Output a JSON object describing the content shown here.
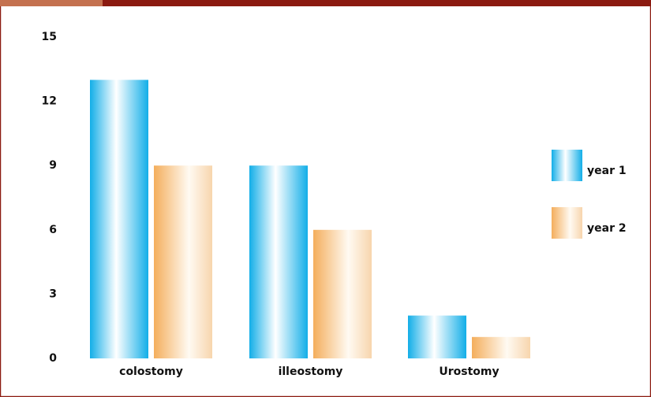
{
  "chart_data": {
    "type": "bar",
    "categories": [
      "colostomy",
      "illeostomy",
      "Urostomy"
    ],
    "series": [
      {
        "name": "year 1",
        "color": "#12aee8",
        "values": [
          13,
          9,
          2
        ]
      },
      {
        "name": "year 2",
        "color": "#f4ae5c",
        "values": [
          9,
          6,
          1
        ]
      }
    ],
    "ylim": [
      0,
      15
    ],
    "yticks": [
      0,
      3,
      6,
      9,
      12,
      15
    ],
    "grid": false,
    "legend": "right"
  }
}
